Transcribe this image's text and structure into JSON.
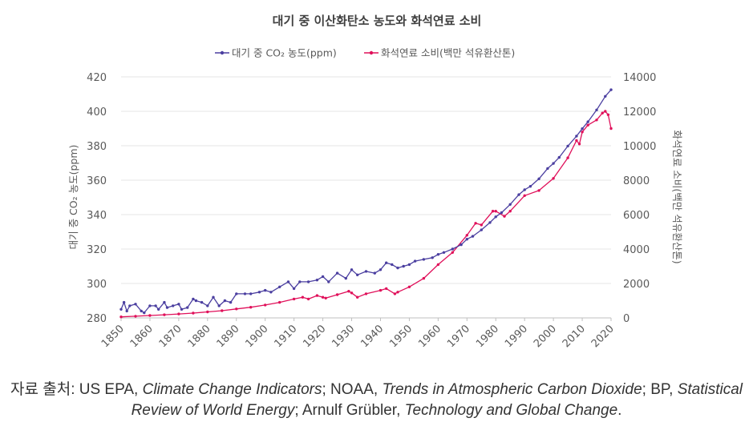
{
  "chart_data": {
    "type": "line",
    "title": "대기 중 이산화탄소 농도와 화석연료 소비",
    "legend_position": "top-center",
    "grid": "horizontal",
    "x_axis": {
      "range": [
        1850,
        2020
      ],
      "ticks": [
        1850,
        1860,
        1870,
        1880,
        1890,
        1900,
        1910,
        1920,
        1930,
        1940,
        1950,
        1960,
        1970,
        1980,
        1990,
        2000,
        2010,
        2020
      ],
      "tick_labels": [
        "1850",
        "1860",
        "1870",
        "1880",
        "1890",
        "1900",
        "1910",
        "1920",
        "1930",
        "1940",
        "1950",
        "1960",
        "1970",
        "1980",
        "1990",
        "2000",
        "2010",
        "2020"
      ]
    },
    "y_left": {
      "label": "대기 중 CO₂ 농도(ppm)",
      "range": [
        280,
        420
      ],
      "ticks": [
        280,
        300,
        320,
        340,
        360,
        380,
        400,
        420
      ],
      "tick_labels": [
        "280",
        "300",
        "320",
        "340",
        "360",
        "380",
        "400",
        "420"
      ]
    },
    "y_right": {
      "label": "화석연료 소비(백만 석유환산톤)",
      "range": [
        0,
        14000
      ],
      "ticks": [
        0,
        2000,
        4000,
        6000,
        8000,
        10000,
        12000,
        14000
      ],
      "tick_labels": [
        "0",
        "2000",
        "4000",
        "6000",
        "8000",
        "10000",
        "12000",
        "14000"
      ]
    },
    "series": [
      {
        "name": "대기 중 CO₂ 농도(ppm)",
        "axis": "left",
        "color": "#4b3fa0",
        "x": [
          1850,
          1851,
          1852,
          1853,
          1855,
          1857,
          1858,
          1860,
          1862,
          1863,
          1865,
          1866,
          1868,
          1870,
          1871,
          1873,
          1875,
          1876,
          1878,
          1880,
          1882,
          1884,
          1886,
          1888,
          1890,
          1893,
          1895,
          1898,
          1900,
          1902,
          1905,
          1908,
          1910,
          1912,
          1915,
          1918,
          1920,
          1922,
          1925,
          1928,
          1930,
          1932,
          1935,
          1938,
          1940,
          1942,
          1944,
          1946,
          1948,
          1950,
          1952,
          1955,
          1958,
          1960,
          1962,
          1965,
          1968,
          1970,
          1972,
          1975,
          1978,
          1980,
          1982,
          1985,
          1988,
          1990,
          1992,
          1995,
          1998,
          2000,
          2002,
          2005,
          2008,
          2010,
          2012,
          2015,
          2018,
          2020
        ],
        "values": [
          285,
          289,
          284,
          287,
          288,
          284,
          283,
          287,
          287,
          285,
          289,
          286,
          287,
          288,
          285,
          286,
          291,
          290,
          289,
          287,
          292,
          287,
          290,
          289,
          294,
          294,
          294,
          295,
          296,
          295,
          298,
          301,
          297,
          301,
          301,
          302,
          304,
          301,
          306,
          303,
          308,
          305,
          307,
          306,
          308,
          312,
          311,
          309,
          310,
          311,
          313,
          314,
          315,
          316.9,
          318,
          320,
          322.5,
          325.7,
          327.4,
          331.1,
          335.4,
          338.7,
          341.1,
          345.9,
          351.6,
          354.4,
          356.4,
          360.8,
          366.8,
          369.7,
          373.2,
          379.8,
          385.6,
          389.9,
          393.9,
          400.8,
          408.7,
          412.5
        ]
      },
      {
        "name": "화석연료 소비(백만 석유환산톤)",
        "axis": "right",
        "color": "#e0105a",
        "x": [
          1850,
          1855,
          1860,
          1865,
          1870,
          1875,
          1880,
          1885,
          1890,
          1895,
          1900,
          1905,
          1910,
          1913,
          1915,
          1918,
          1920,
          1921,
          1925,
          1929,
          1930,
          1932,
          1935,
          1940,
          1942,
          1945,
          1946,
          1950,
          1955,
          1960,
          1965,
          1970,
          1973,
          1975,
          1979,
          1980,
          1983,
          1985,
          1990,
          1995,
          2000,
          2005,
          2008,
          2009,
          2010,
          2012,
          2015,
          2017,
          2018,
          2019,
          2020
        ],
        "values": [
          60,
          100,
          140,
          180,
          230,
          280,
          350,
          420,
          520,
          620,
          750,
          900,
          1100,
          1200,
          1100,
          1300,
          1200,
          1150,
          1350,
          1550,
          1450,
          1200,
          1400,
          1600,
          1700,
          1400,
          1500,
          1800,
          2300,
          3100,
          3800,
          4800,
          5500,
          5400,
          6200,
          6200,
          5900,
          6200,
          7100,
          7400,
          8100,
          9300,
          10300,
          10100,
          10800,
          11200,
          11500,
          11900,
          12000,
          11800,
          11000
        ]
      }
    ]
  },
  "source": {
    "prefix": "자료  출처: US EPA, ",
    "t1": "Climate Change Indicators",
    "s1": "; NOAA, ",
    "t2": "Trends in Atmospheric Carbon Dioxide",
    "s2": "; BP, ",
    "t3": "Statistical",
    "t4": "Review of World Energy",
    "s3": "; Arnulf Grübler, ",
    "t5": "Technology and Global Change",
    "s4": "."
  }
}
